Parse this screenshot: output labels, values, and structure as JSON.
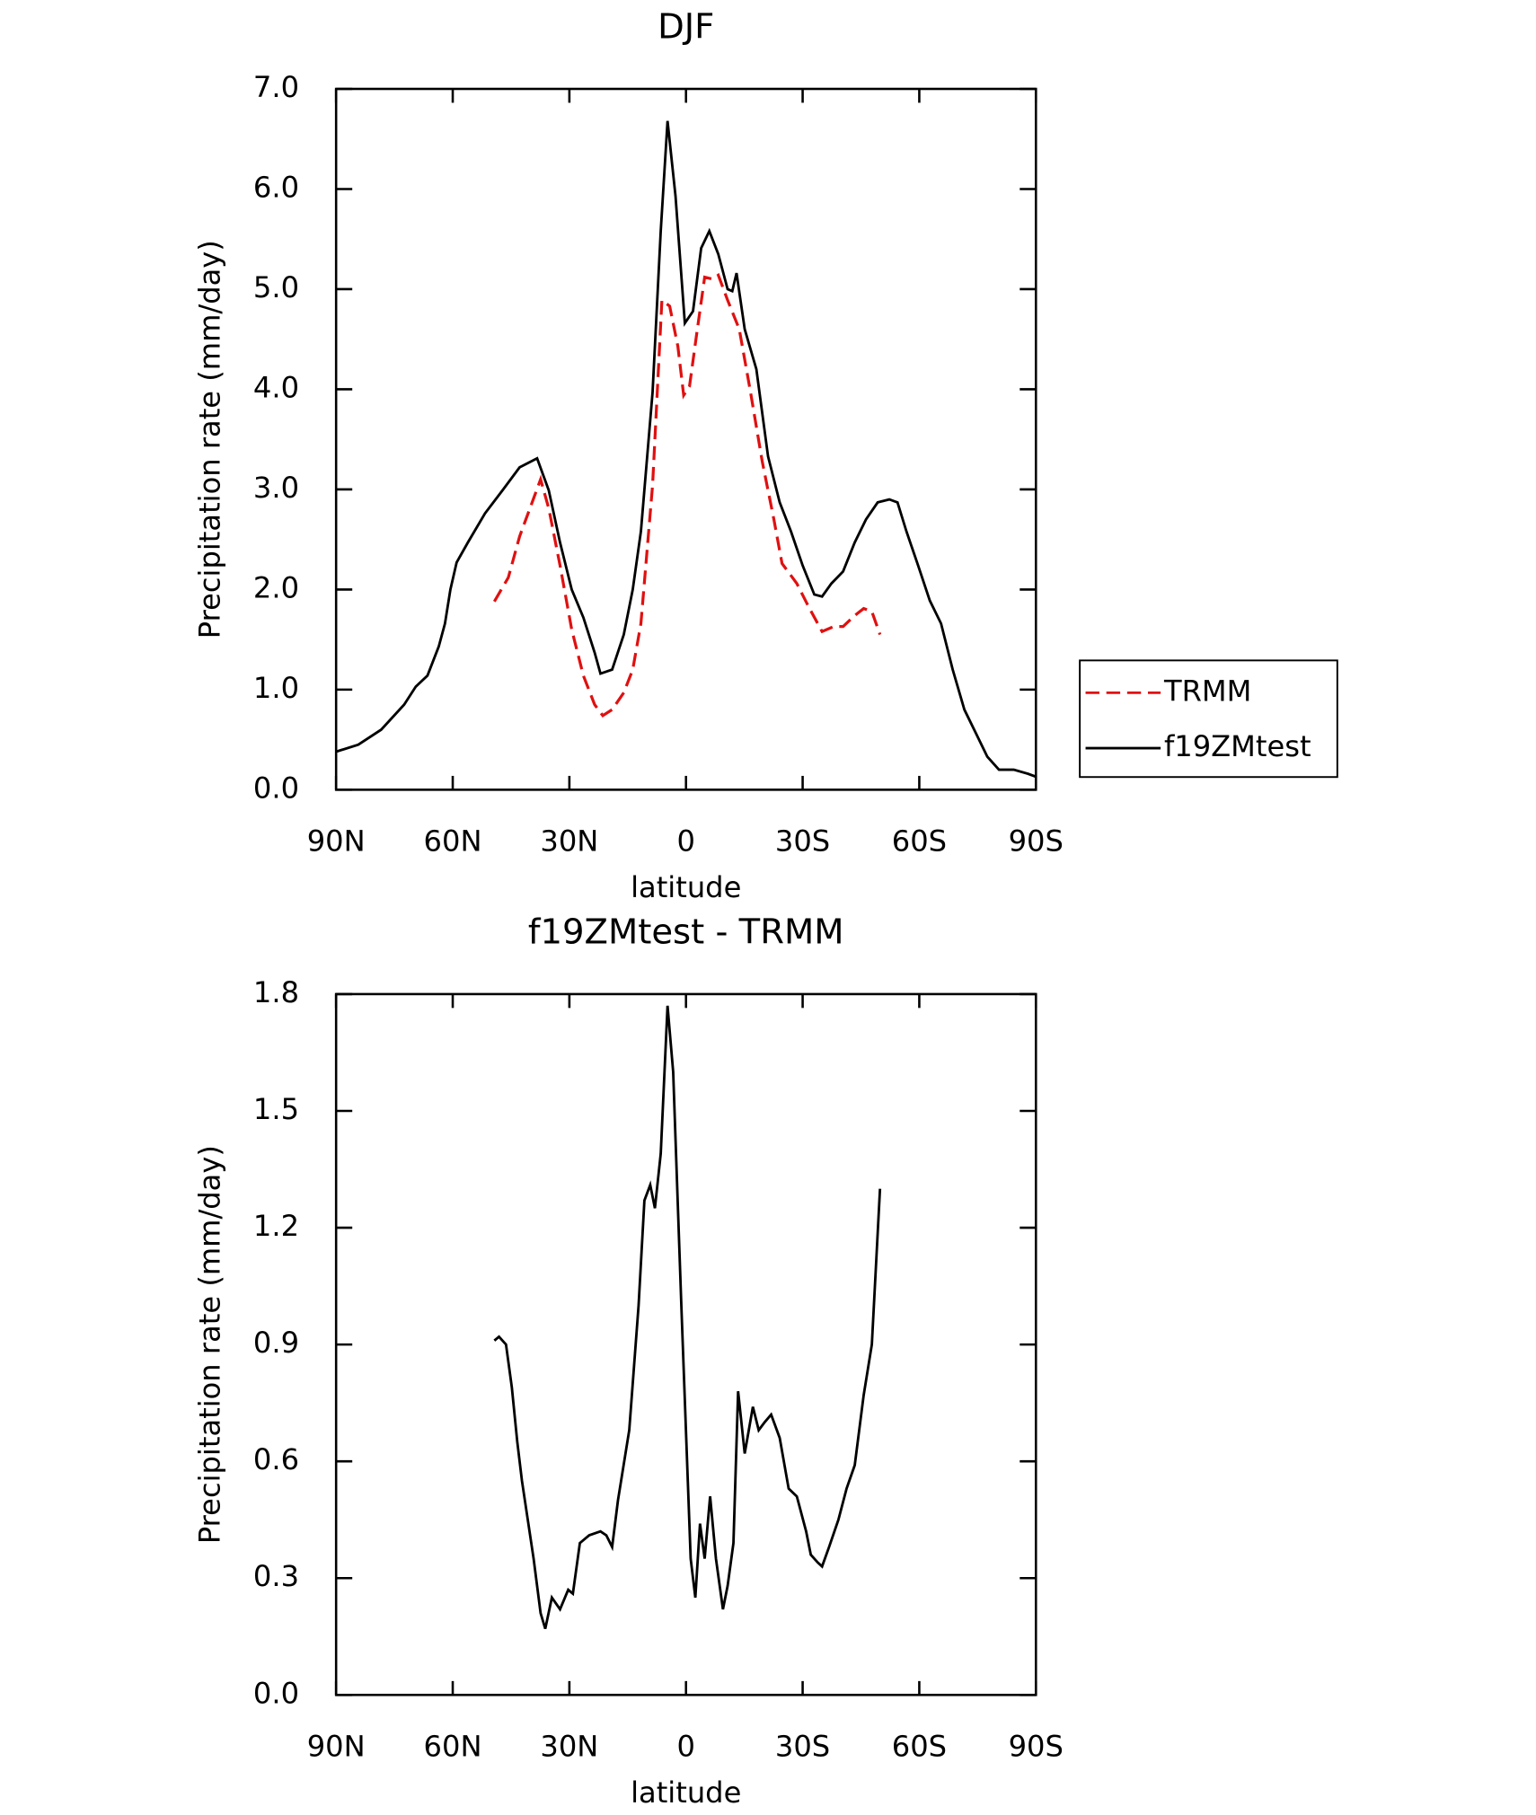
{
  "chart_data": [
    {
      "type": "line",
      "title": "DJF",
      "x_label": "latitude",
      "y_label": "Precipitation rate (mm/day)",
      "xlim": [
        90,
        -90
      ],
      "xticks": [
        {
          "value": 90,
          "label": "90N"
        },
        {
          "value": 60,
          "label": "60N"
        },
        {
          "value": 30,
          "label": "30N"
        },
        0,
        {
          "value": -30,
          "label": "30S"
        },
        {
          "value": -60,
          "label": "60S"
        },
        {
          "value": -90,
          "label": "90S"
        }
      ],
      "ylim": [
        0,
        7
      ],
      "yticks": [
        {
          "value": 0,
          "label": "0.0"
        },
        {
          "value": 1,
          "label": "1.0"
        },
        {
          "value": 2,
          "label": "2.0"
        },
        {
          "value": 3,
          "label": "3.0"
        },
        {
          "value": 4,
          "label": "4.0"
        },
        {
          "value": 5,
          "label": "5.0"
        },
        {
          "value": 6,
          "label": "6.0"
        },
        {
          "value": 7,
          "label": "7.0"
        }
      ],
      "legend": "right",
      "series": [
        {
          "name": "TRMM",
          "color": "#e01010",
          "dash": true,
          "x": [
            49.3,
            45.7,
            42.8,
            39.2,
            37.4,
            35.3,
            32.4,
            29.4,
            26.4,
            23.5,
            21.4,
            19,
            16,
            13.7,
            11.6,
            8.6,
            6.2,
            4.2,
            2.1,
            0.6,
            -0.9,
            -2.7,
            -4.8,
            -6.8,
            -8.3,
            -10.7,
            -13.7,
            -16.6,
            -19.6,
            -22.6,
            -24.7,
            -28.5,
            -31.5,
            -35,
            -38,
            -40.4,
            -43.4,
            -45.7,
            -47.8,
            -49.9
          ],
          "values": [
            1.88,
            2.12,
            2.53,
            2.91,
            3.1,
            2.81,
            2.24,
            1.6,
            1.14,
            0.85,
            0.74,
            0.8,
            0.97,
            1.2,
            1.66,
            3.04,
            4.89,
            4.83,
            4.43,
            3.94,
            4.03,
            4.54,
            5.12,
            5.1,
            5.14,
            4.89,
            4.6,
            3.97,
            3.28,
            2.7,
            2.26,
            2.06,
            1.83,
            1.58,
            1.63,
            1.63,
            1.74,
            1.81,
            1.78,
            1.55
          ]
        },
        {
          "name": "f19ZMtest",
          "color": "#000000",
          "dash": false,
          "x": [
            90,
            84.3,
            78.4,
            72.5,
            69.5,
            66.5,
            63.6,
            62,
            60.6,
            59,
            56.1,
            51.7,
            47.2,
            42.8,
            38.3,
            35.3,
            32.4,
            29.4,
            26.4,
            23.5,
            22,
            19,
            16,
            13.7,
            11.6,
            8.6,
            6.5,
            4.75,
            2.7,
            0.3,
            -1.8,
            -3.9,
            -6,
            -8.3,
            -10.7,
            -11.9,
            -13,
            -15.1,
            -18.1,
            -21.1,
            -24.1,
            -27,
            -30,
            -33,
            -35,
            -37.4,
            -40.4,
            -43.4,
            -46.3,
            -49.3,
            -52.3,
            -54.4,
            -56.7,
            -59.7,
            -62.7,
            -65.6,
            -68.6,
            -71.6,
            -74.5,
            -77.5,
            -80.5,
            -84.3,
            -87.9,
            -90
          ],
          "values": [
            0.38,
            0.45,
            0.6,
            0.85,
            1.03,
            1.14,
            1.43,
            1.66,
            2.0,
            2.27,
            2.47,
            2.76,
            2.99,
            3.22,
            3.31,
            2.99,
            2.47,
            2.0,
            1.72,
            1.37,
            1.16,
            1.2,
            1.55,
            2.0,
            2.58,
            3.97,
            5.58,
            6.68,
            5.93,
            4.66,
            4.78,
            5.41,
            5.58,
            5.35,
            5.0,
            4.98,
            5.16,
            4.6,
            4.2,
            3.33,
            2.87,
            2.58,
            2.24,
            1.95,
            1.93,
            2.06,
            2.18,
            2.47,
            2.7,
            2.87,
            2.9,
            2.87,
            2.58,
            2.24,
            1.89,
            1.66,
            1.2,
            0.8,
            0.57,
            0.33,
            0.2,
            0.2,
            0.16,
            0.13
          ]
        }
      ]
    },
    {
      "type": "line",
      "title": "f19ZMtest - TRMM",
      "x_label": "latitude",
      "y_label": "Precipitation rate (mm/day)",
      "xlim": [
        90,
        -90
      ],
      "xticks": [
        {
          "value": 90,
          "label": "90N"
        },
        {
          "value": 60,
          "label": "60N"
        },
        {
          "value": 30,
          "label": "30N"
        },
        0,
        {
          "value": -30,
          "label": "30S"
        },
        {
          "value": -60,
          "label": "60S"
        },
        {
          "value": -90,
          "label": "90S"
        }
      ],
      "ylim": [
        0,
        1.8
      ],
      "yticks": [
        {
          "value": 0,
          "label": "0.0"
        },
        0.3,
        0.6,
        0.9,
        1.2,
        1.5,
        1.8
      ],
      "color": "#000000",
      "x": [
        49.3,
        48.1,
        46.3,
        44.8,
        43.4,
        42.2,
        40.7,
        39.2,
        37.4,
        36.2,
        34.5,
        32.4,
        30.3,
        29.1,
        27.3,
        24.9,
        22,
        20.5,
        19,
        17.5,
        14.6,
        12.2,
        10.7,
        9.2,
        8,
        6.5,
        4.75,
        3.3,
        1.2,
        -1.2,
        -2.4,
        -3.6,
        -4.8,
        -6.2,
        -7.7,
        -9.5,
        -10.7,
        -12.2,
        -13.4,
        -15.1,
        -17.2,
        -18.7,
        -20.2,
        -21.9,
        -24.1,
        -26.4,
        -28.5,
        -30.9,
        -32.1,
        -33.9,
        -35,
        -36.8,
        -39.2,
        -41.3,
        -43.4,
        -45.7,
        -47.8,
        -49.9
      ],
      "values": [
        0.91,
        0.92,
        0.9,
        0.79,
        0.65,
        0.55,
        0.45,
        0.35,
        0.21,
        0.17,
        0.25,
        0.22,
        0.27,
        0.26,
        0.39,
        0.41,
        0.42,
        0.41,
        0.38,
        0.5,
        0.68,
        1.0,
        1.27,
        1.31,
        1.25,
        1.39,
        1.77,
        1.6,
        1.0,
        0.35,
        0.25,
        0.44,
        0.35,
        0.51,
        0.35,
        0.22,
        0.28,
        0.39,
        0.78,
        0.62,
        0.74,
        0.68,
        0.7,
        0.72,
        0.66,
        0.53,
        0.51,
        0.42,
        0.36,
        0.34,
        0.33,
        0.38,
        0.45,
        0.53,
        0.59,
        0.77,
        0.9,
        1.3
      ]
    }
  ]
}
